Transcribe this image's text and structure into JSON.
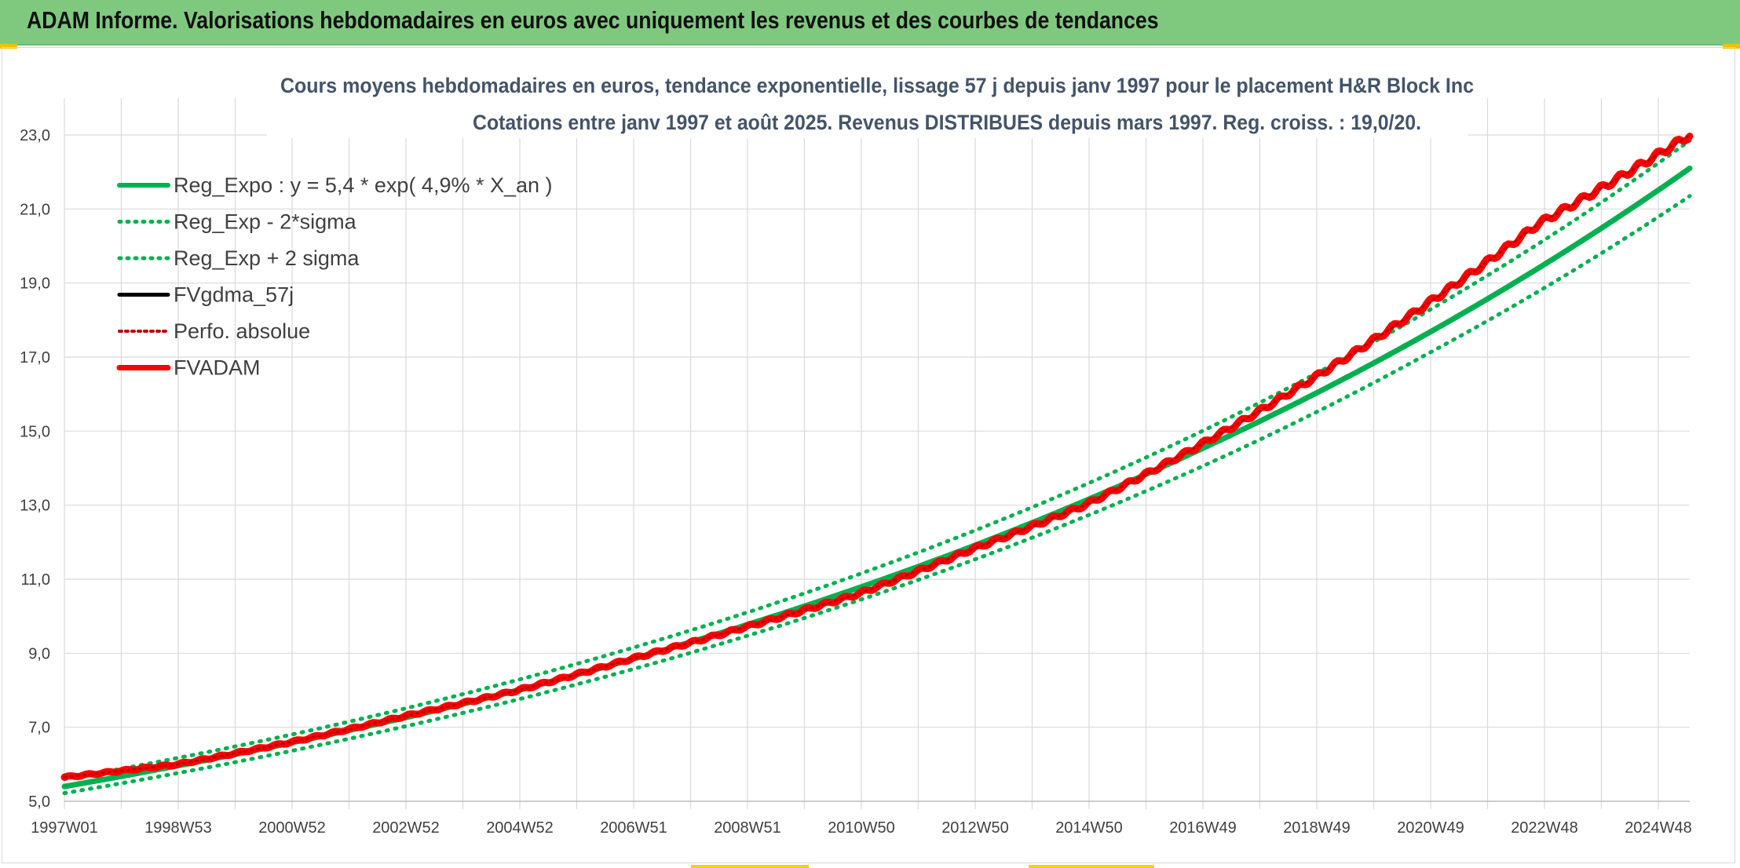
{
  "banner": {
    "title": "ADAM Informe. Valorisations hebdomadaires en euros avec uniquement les revenus et des courbes de tendances"
  },
  "colors": {
    "banner_bg": "#7fc97f",
    "regression": "#00b050",
    "sigma": "#00b050",
    "fvadam": "#ff0000",
    "perfo": "#c00000",
    "fvgdma": "#000000",
    "grid": "#d9d9d9",
    "text": "#404040",
    "title_text": "#44546a"
  },
  "chart_data": {
    "type": "line",
    "title": "Cours moyens hebdomadaires en euros, tendance exponentielle, lissage 57 j depuis janv 1997 pour le placement H&R Block Inc",
    "subtitle": "Cotations entre janv 1997 et août 2025. Revenus DISTRIBUES depuis mars 1997. Reg. croiss. : 19,0/20.",
    "xlabel": "",
    "ylabel": "",
    "ylim": [
      5.0,
      23.0
    ],
    "yticks": [
      "5,0",
      "7,0",
      "9,0",
      "11,0",
      "13,0",
      "15,0",
      "17,0",
      "19,0",
      "21,0",
      "23,0"
    ],
    "xticks": [
      "1997W01",
      "1998W53",
      "2000W52",
      "2002W52",
      "2004W52",
      "2006W51",
      "2008W51",
      "2010W50",
      "2012W50",
      "2014W50",
      "2016W49",
      "2018W49",
      "2020W49",
      "2022W48",
      "2024W48"
    ],
    "x_range_years": [
      1997.0,
      2025.67
    ],
    "grid": true,
    "legend_position": "top-left",
    "legend": [
      {
        "name": "Reg_Expo : y = 5,4 * exp( 4,9% *  X_an )",
        "style": "solid-green"
      },
      {
        "name": "Reg_Exp - 2*sigma",
        "style": "dotted-green"
      },
      {
        "name": "Reg_Exp + 2 sigma",
        "style": "dotted-green"
      },
      {
        "name": "FVgdma_57j",
        "style": "solid-black"
      },
      {
        "name": "Perfo. absolue",
        "style": "dotted-red"
      },
      {
        "name": "FVADAM",
        "style": "solid-red"
      }
    ],
    "series": [
      {
        "name": "Reg_Expo : y = 5,4 * exp( 4,9% *  X_an )",
        "x": [
          1997.0,
          2001.0,
          2005.0,
          2009.0,
          2013.0,
          2017.0,
          2021.0,
          2025.67
        ],
        "values": [
          5.4,
          6.58,
          8.0,
          9.75,
          11.88,
          14.48,
          17.6,
          22.1
        ]
      },
      {
        "name": "Reg_Exp - 2*sigma",
        "x": [
          1997.0,
          2001.0,
          2005.0,
          2009.0,
          2013.0,
          2017.0,
          2021.0,
          2025.67
        ],
        "values": [
          5.22,
          6.36,
          7.75,
          9.45,
          11.5,
          14.0,
          17.05,
          21.35
        ]
      },
      {
        "name": "Reg_Exp + 2 sigma",
        "x": [
          1997.0,
          2001.0,
          2005.0,
          2009.0,
          2013.0,
          2017.0,
          2021.0,
          2025.67
        ],
        "values": [
          5.6,
          6.8,
          8.28,
          10.08,
          12.28,
          14.95,
          18.2,
          22.85
        ]
      },
      {
        "name": "FVADAM",
        "x": [
          1997.0,
          1999.0,
          2001.0,
          2003.0,
          2005.0,
          2007.0,
          2009.0,
          2011.0,
          2013.0,
          2015.0,
          2017.0,
          2019.0,
          2021.0,
          2023.0,
          2025.67
        ],
        "values": [
          5.65,
          6.0,
          6.6,
          7.3,
          8.0,
          8.85,
          9.7,
          10.6,
          11.8,
          13.0,
          14.6,
          16.4,
          18.4,
          20.6,
          23.0
        ]
      },
      {
        "name": "Perfo. absolue",
        "x": [
          1997.0,
          1999.0,
          2001.0,
          2003.0,
          2005.0,
          2007.0,
          2009.0,
          2011.0,
          2013.0,
          2015.0,
          2017.0,
          2019.0,
          2021.0,
          2023.0,
          2025.67
        ],
        "values": [
          5.65,
          6.0,
          6.6,
          7.3,
          8.0,
          8.85,
          9.7,
          10.6,
          11.8,
          13.0,
          14.6,
          16.4,
          18.4,
          20.6,
          23.0
        ]
      }
    ]
  }
}
